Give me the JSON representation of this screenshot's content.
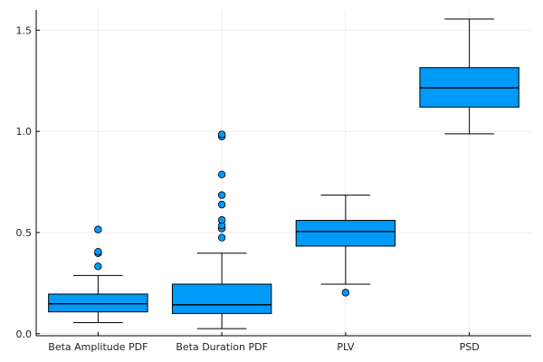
{
  "chart_data": {
    "type": "box",
    "title": "",
    "xlabel": "",
    "ylabel": "",
    "ylim": [
      -0.01,
      1.6
    ],
    "yticks": [
      0.0,
      0.5,
      1.0,
      1.5
    ],
    "ytick_labels": [
      "0.0",
      "0.5",
      "1.0",
      "1.5"
    ],
    "grid": true,
    "legend": "none",
    "categories": [
      "Beta Amplitude PDF",
      "Beta Duration PDF",
      "PLV",
      "PSD"
    ],
    "boxes": [
      {
        "category": "Beta Amplitude PDF",
        "whisker_low": 0.055,
        "q1": 0.108,
        "median": 0.148,
        "q3": 0.196,
        "whisker_high": 0.288,
        "outliers": [
          0.333,
          0.398,
          0.405,
          0.515
        ]
      },
      {
        "category": "Beta Duration PDF",
        "whisker_low": 0.025,
        "q1": 0.1,
        "median": 0.143,
        "q3": 0.245,
        "whisker_high": 0.398,
        "outliers": [
          0.475,
          0.52,
          0.535,
          0.562,
          0.638,
          0.685,
          0.787,
          0.975,
          0.985
        ]
      },
      {
        "category": "PLV",
        "whisker_low": 0.245,
        "q1": 0.433,
        "median": 0.505,
        "q3": 0.56,
        "whisker_high": 0.685,
        "outliers": [
          0.203
        ]
      },
      {
        "category": "PSD",
        "whisker_low": 0.988,
        "q1": 1.12,
        "median": 1.215,
        "q3": 1.315,
        "whisker_high": 1.555,
        "outliers": []
      }
    ],
    "colors": {
      "box_fill": "#009af9",
      "stroke": "#000000",
      "grid": "#e6e6e6",
      "axis": "#000000"
    }
  }
}
